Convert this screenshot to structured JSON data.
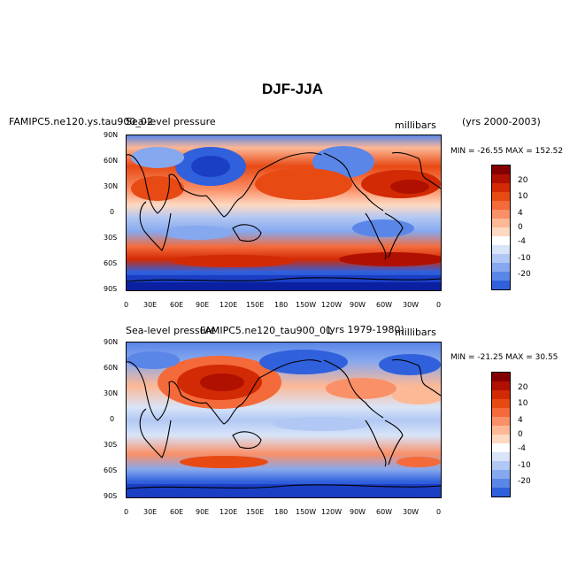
{
  "figure_title": "DJF-JJA",
  "panels": [
    {
      "left_label": "FAMIPC5.ne120.ys.tau900_02",
      "center_label": "Sea-level pressure",
      "units": "millibars",
      "right_label": "(yrs 2000-2003)",
      "minmax": "MIN = -26.55 MAX = 152.52"
    },
    {
      "left_label": "FAMIPC5.ne120_tau900_01",
      "center_label": "Sea-level pressure",
      "units": "millibars",
      "right_label": "(yrs 1979-1980)",
      "minmax": "MIN = -21.25 MAX =  30.55"
    }
  ],
  "lat_ticks": [
    "90N",
    "60N",
    "30N",
    "0",
    "30S",
    "60S",
    "90S"
  ],
  "lon_ticks": [
    "0",
    "30E",
    "60E",
    "90E",
    "120E",
    "150E",
    "180",
    "150W",
    "120W",
    "90W",
    "60W",
    "30W",
    "0"
  ],
  "colorbar": {
    "colors": [
      "#840000",
      "#b01000",
      "#d22a04",
      "#e84a14",
      "#f46a3a",
      "#fa9068",
      "#fdb896",
      "#fed9c2",
      "#ffffff",
      "#d8e4f8",
      "#b2c8f4",
      "#86a8ee",
      "#5a86e8",
      "#3060dc",
      "#1a3ec4",
      "#0a20a0",
      "#000078"
    ],
    "labels": [
      "20",
      "10",
      "4",
      "0",
      "-4",
      "-10",
      "-20"
    ]
  }
}
